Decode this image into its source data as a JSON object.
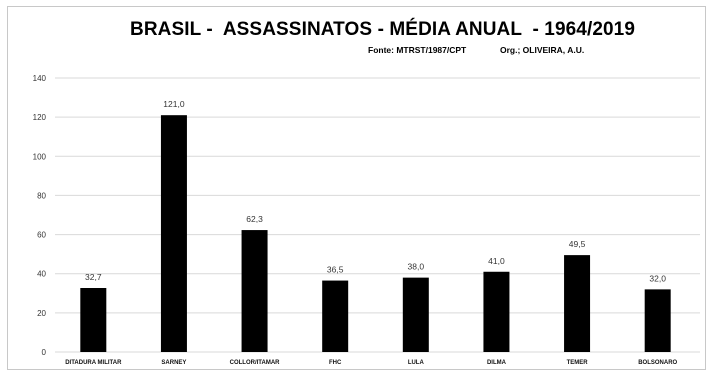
{
  "chart_data": {
    "type": "bar",
    "title": "BRASIL -  ASSASSINATOS - MÉDIA ANUAL  - 1964/2019",
    "source": "Fonte: MTRST/1987/CPT",
    "organizer": "Org.; OLIVEIRA, A.U.",
    "categories": [
      "DITADURA MILITAR",
      "SARNEY",
      "COLLOR/ITAMAR",
      "FHC",
      "LULA",
      "DILMA",
      "TEMER",
      "BOLSONARO"
    ],
    "values": [
      32.7,
      121.0,
      62.3,
      36.5,
      38.0,
      41.0,
      49.5,
      32.0
    ],
    "data_labels": [
      "32,7",
      "121,0",
      "62,3",
      "36,5",
      "38,0",
      "41,0",
      "49,5",
      "32,0"
    ],
    "ylim": [
      0,
      140
    ],
    "yticks": [
      0,
      20,
      40,
      60,
      80,
      100,
      120,
      140
    ],
    "xlabel": "",
    "ylabel": "",
    "grid": true,
    "legend": "none",
    "bar_color": "#000000",
    "grid_color": "#d9d9d9"
  }
}
